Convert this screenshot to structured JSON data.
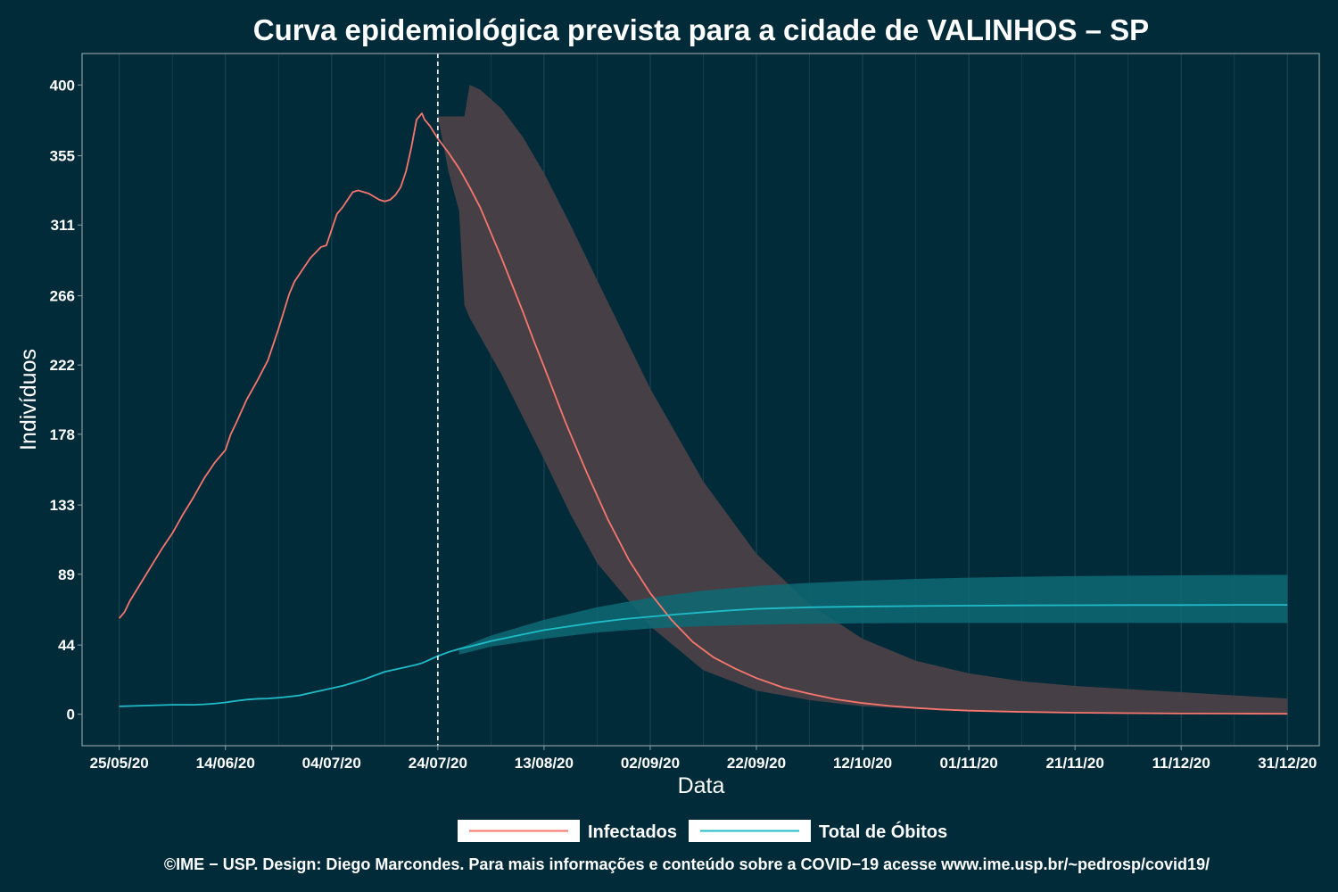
{
  "chart_data": {
    "type": "line",
    "title": "Curva epidemiológica prevista para a cidade de VALINHOS – SP",
    "xlabel": "Data",
    "ylabel": "Indivíduos",
    "x_range": [
      "2020-05-25",
      "2020-12-31"
    ],
    "xlim_days": [
      -7,
      226
    ],
    "ylim": [
      -20,
      420
    ],
    "y_ticks": [
      "0",
      "44",
      "89",
      "133",
      "178",
      "222",
      "266",
      "311",
      "355",
      "400"
    ],
    "y_tick_values": [
      0,
      44,
      89,
      133,
      178,
      222,
      266,
      311,
      355,
      400
    ],
    "x_ticks": [
      "25/05/20",
      "14/06/20",
      "04/07/20",
      "24/07/20",
      "13/08/20",
      "02/09/20",
      "22/09/20",
      "12/10/20",
      "01/11/20",
      "21/11/20",
      "11/12/20",
      "31/12/20"
    ],
    "x_tick_days": [
      0,
      20,
      40,
      60,
      80,
      100,
      120,
      140,
      160,
      180,
      200,
      220
    ],
    "forecast_start_day": 60,
    "series": [
      {
        "name": "Infectados",
        "color": "#f8766d",
        "days": [
          0,
          1,
          2,
          4,
          6,
          8,
          10,
          12,
          14,
          16,
          18,
          20,
          21,
          22,
          24,
          26,
          28,
          30,
          32,
          33,
          34,
          36,
          38,
          39,
          40,
          41,
          42,
          44,
          45,
          46,
          47,
          49,
          50,
          51,
          52,
          53,
          54,
          55,
          56,
          57,
          57.5,
          58,
          58.5,
          60,
          62,
          64,
          66,
          68,
          70,
          72,
          74,
          76,
          78,
          80,
          84,
          88,
          92,
          96,
          100,
          104,
          108,
          112,
          116,
          120,
          125,
          130,
          135,
          140,
          145,
          150,
          155,
          160,
          170,
          180,
          190,
          200,
          210,
          220
        ],
        "values": [
          61,
          65,
          72,
          83,
          94,
          105,
          115,
          127,
          138,
          150,
          160,
          168,
          178,
          185,
          200,
          212,
          225,
          245,
          267,
          275,
          280,
          290,
          297,
          298,
          308,
          318,
          322,
          332,
          333,
          332,
          331,
          327,
          326,
          327,
          330,
          335,
          345,
          360,
          378,
          382,
          378,
          376,
          374,
          366,
          357,
          347,
          335,
          322,
          306,
          290,
          273,
          256,
          238,
          221,
          186,
          154,
          124,
          98,
          77,
          60,
          46,
          36,
          29,
          23,
          17,
          13,
          9.5,
          7.1,
          5.3,
          4.0,
          3.0,
          2.3,
          1.5,
          1.0,
          0.7,
          0.5,
          0.4,
          0.3
        ]
      },
      {
        "name": "Total de Óbitos",
        "color": "#1fbcc8",
        "days": [
          0,
          5,
          10,
          14,
          16,
          18,
          20,
          22,
          24,
          26,
          28,
          30,
          32,
          34,
          36,
          38,
          40,
          42,
          44,
          45,
          46,
          48,
          50,
          52,
          54,
          56,
          57,
          58,
          59,
          60,
          62,
          64,
          66,
          70,
          75,
          80,
          85,
          90,
          95,
          100,
          105,
          110,
          115,
          120,
          130,
          140,
          150,
          160,
          170,
          180,
          190,
          200,
          210,
          220
        ],
        "values": [
          5,
          5.5,
          6,
          6,
          6.3,
          6.8,
          7.5,
          8.5,
          9.3,
          9.8,
          10,
          10.5,
          11.2,
          12,
          13.5,
          15,
          16.5,
          18,
          20,
          21,
          22,
          24.5,
          27,
          28.5,
          30,
          31.5,
          32.5,
          34,
          35.5,
          37,
          39.5,
          41.5,
          43,
          46.5,
          50,
          53.5,
          56,
          58.5,
          60.5,
          62,
          63.5,
          64.8,
          66,
          67,
          68,
          68.5,
          68.8,
          69,
          69.2,
          69.3,
          69.4,
          69.4,
          69.5,
          69.5
        ]
      }
    ],
    "bands": [
      {
        "name": "Infectados (intervalo)",
        "color": "#4a4147",
        "days": [
          60,
          62,
          64,
          65,
          66,
          68,
          72,
          76,
          80,
          85,
          90,
          100,
          110,
          120,
          130,
          140,
          150,
          160,
          170,
          180,
          190,
          200,
          210,
          220
        ],
        "upper": [
          380,
          380,
          380,
          380,
          400,
          397,
          385,
          367,
          344,
          311,
          276,
          207,
          148,
          102,
          70,
          48,
          34,
          26,
          21,
          18,
          16,
          14,
          12,
          10
        ],
        "lower": [
          380,
          345,
          320,
          260,
          252,
          240,
          216,
          189,
          162,
          127,
          96,
          56,
          28,
          15,
          9,
          5,
          3.5,
          2.5,
          1.8,
          1.2,
          0.8,
          0.5,
          0.4,
          0.3
        ]
      },
      {
        "name": "Total de Óbitos (intervalo)",
        "color": "#0d6a74",
        "days": [
          64,
          70,
          80,
          90,
          100,
          110,
          120,
          130,
          140,
          150,
          160,
          170,
          180,
          190,
          200,
          210,
          220
        ],
        "upper": [
          42,
          50,
          60,
          68,
          74,
          78.5,
          81.5,
          83.5,
          85,
          86,
          86.8,
          87.4,
          87.8,
          88.1,
          88.3,
          88.5,
          88.6
        ],
        "lower": [
          38,
          43,
          48,
          52,
          54.5,
          56,
          57,
          57.5,
          57.8,
          58,
          58,
          58,
          58,
          58,
          58,
          58,
          58
        ]
      }
    ],
    "legend": [
      "Infectados",
      "Total de Óbitos"
    ],
    "legend_position": "bottom"
  },
  "caption": "©IME − USP. Design: Diego Marcondes. Para mais informações e conteúdo sobre a COVID−19 acesse www.ime.usp.br/~pedrosp/covid19/",
  "colors": {
    "background": "#022b3a",
    "gridline": "#1c4450",
    "band_infected": "#4a4147",
    "band_deaths": "#0d6a74"
  }
}
